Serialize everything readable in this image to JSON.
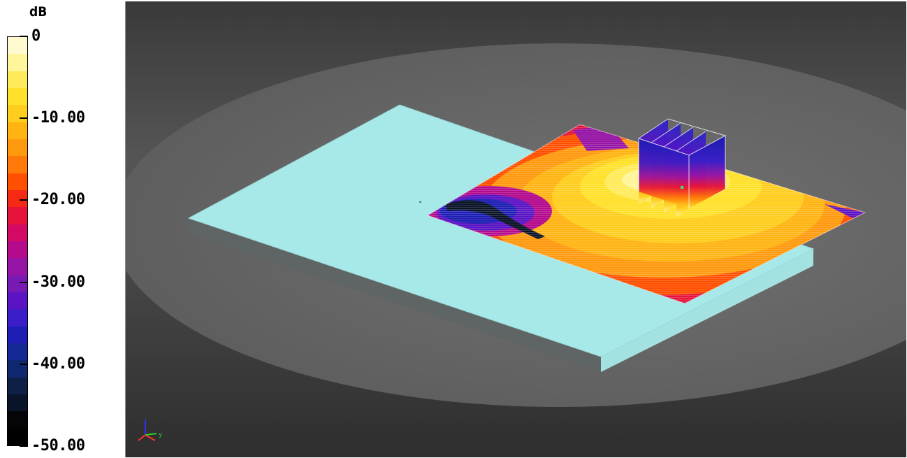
{
  "colorbar": {
    "unit": "dB",
    "ticks": [
      {
        "label": "0",
        "value": 0
      },
      {
        "label": "-10.00",
        "value": -10
      },
      {
        "label": "-20.00",
        "value": -20
      },
      {
        "label": "-30.00",
        "value": -30
      },
      {
        "label": "-40.00",
        "value": -40
      },
      {
        "label": "-50.00",
        "value": -50
      }
    ],
    "bands": [
      "#fffad0",
      "#fff59a",
      "#ffeb5a",
      "#ffe02a",
      "#ffcd1e",
      "#ffb414",
      "#ff9a0f",
      "#ff7a0a",
      "#ff5000",
      "#f52a14",
      "#e6143c",
      "#d20a64",
      "#b40a8c",
      "#9614a5",
      "#7819b4",
      "#5a14c3",
      "#3c1ec8",
      "#1e1eb4",
      "#142896",
      "#102870",
      "#0e2046",
      "#0a1428",
      "#050508",
      "#000000"
    ]
  },
  "viewport": {
    "background": "#4f4f4f",
    "ground_color": "#6e6e6e",
    "board_color": "#a7e8e8",
    "axis_labels": {
      "y": "y"
    }
  }
}
